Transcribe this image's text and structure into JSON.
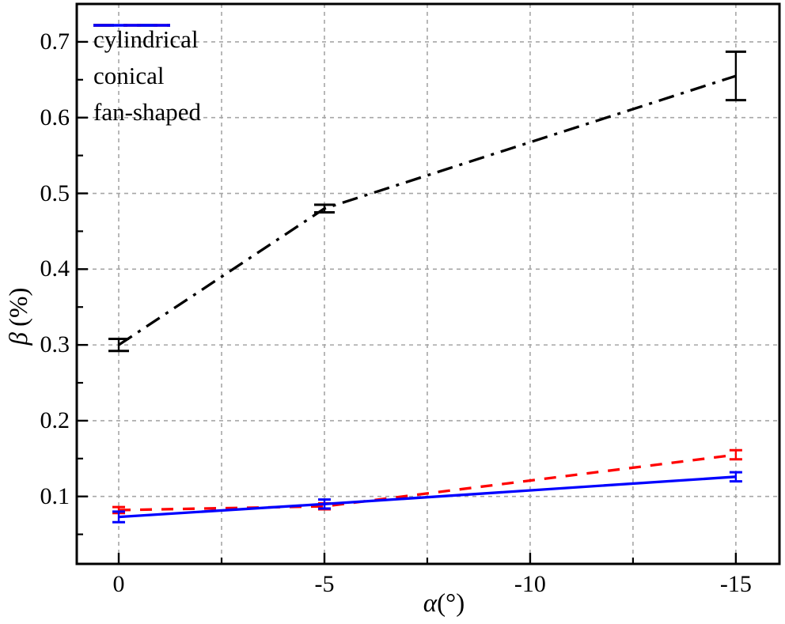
{
  "chart_data": {
    "type": "line",
    "title": "",
    "xlabel": "α(°)",
    "xlabel_symbol": "α",
    "xlabel_units": "(°)",
    "ylabel": "β (%)",
    "ylabel_symbol": "β",
    "ylabel_units": "(%)",
    "x": [
      0,
      -5,
      -15
    ],
    "x_ticks": [
      0,
      -5,
      -10,
      -15
    ],
    "x_tick_labels": [
      "0",
      "-5",
      "-10",
      "-15"
    ],
    "x_minor_ticks": [
      -2.5,
      -7.5,
      -12.5
    ],
    "y_ticks": [
      0.1,
      0.2,
      0.3,
      0.4,
      0.5,
      0.6,
      0.7
    ],
    "y_tick_labels": [
      "0.1",
      "0.2",
      "0.3",
      "0.4",
      "0.5",
      "0.6",
      "0.7"
    ],
    "y_minor_ticks": [
      0.05,
      0.15,
      0.25,
      0.35,
      0.45,
      0.55,
      0.65
    ],
    "xlim": [
      1.02,
      -16.06
    ],
    "ylim": [
      0.011,
      0.75
    ],
    "grid": {
      "show": true,
      "vertical_step_deg": 2.5,
      "horizontal_at_major_only": true
    },
    "legend_position": "top-left",
    "series": [
      {
        "name": "cylindrical",
        "color": "#000000",
        "line_style": "dash-dot",
        "values": [
          0.3,
          0.48,
          0.655
        ],
        "errors": [
          0.008,
          0.005,
          0.032
        ]
      },
      {
        "name": "conical",
        "color": "#ff0000",
        "line_style": "dashed",
        "values": [
          0.082,
          0.087,
          0.155
        ],
        "errors": [
          0.004,
          0.004,
          0.006
        ]
      },
      {
        "name": "fan-shaped",
        "color": "#0000ff",
        "line_style": "solid",
        "values": [
          0.073,
          0.09,
          0.126
        ],
        "errors": [
          0.007,
          0.006,
          0.006
        ]
      }
    ],
    "colors": {
      "grid": "#a6a6a6",
      "frame": "#000000",
      "background": "#ffffff"
    }
  }
}
